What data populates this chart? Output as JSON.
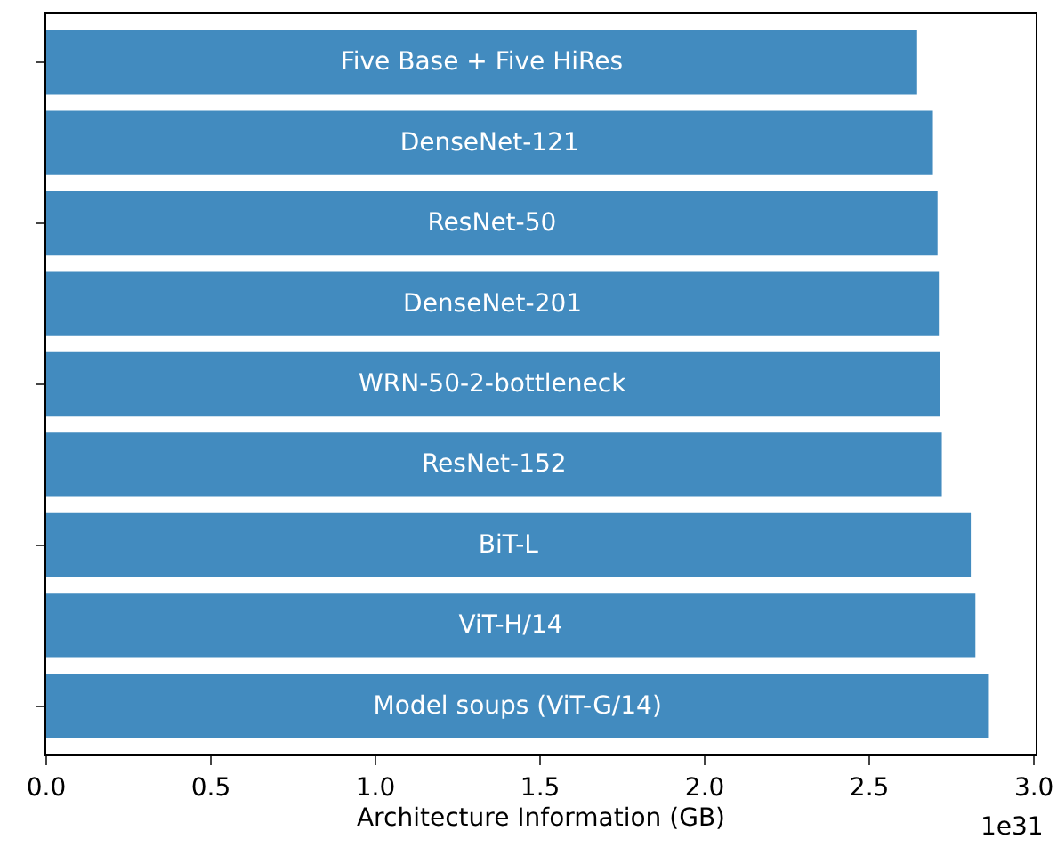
{
  "chart_data": {
    "type": "bar",
    "orientation": "horizontal",
    "xlabel": "Architecture Information (GB)",
    "categories": [
      "Five Base + Five HiRes",
      "DenseNet-121",
      "ResNet-50",
      "DenseNet-201",
      "WRN-50-2-bottleneck",
      "ResNet-152",
      "BiT-L",
      "ViT-H/14",
      "Model soups (ViT-G/14)"
    ],
    "values": [
      2.645,
      2.693,
      2.707,
      2.711,
      2.714,
      2.72,
      2.808,
      2.822,
      2.863
    ],
    "color": "#428bbf",
    "xlim": [
      0,
      3.005
    ],
    "xticks": [
      {
        "value": 0,
        "label": "0.0"
      },
      {
        "value": 0.5,
        "label": "0.5"
      },
      {
        "value": 1,
        "label": "1.0"
      },
      {
        "value": 1.5,
        "label": "1.5"
      },
      {
        "value": 2,
        "label": "2.0"
      },
      {
        "value": 2.5,
        "label": "2.5"
      },
      {
        "value": 3,
        "label": "3.0"
      }
    ],
    "tick_labels": "x",
    "grid": false,
    "legend": false,
    "annotations": [
      "1e31"
    ]
  }
}
